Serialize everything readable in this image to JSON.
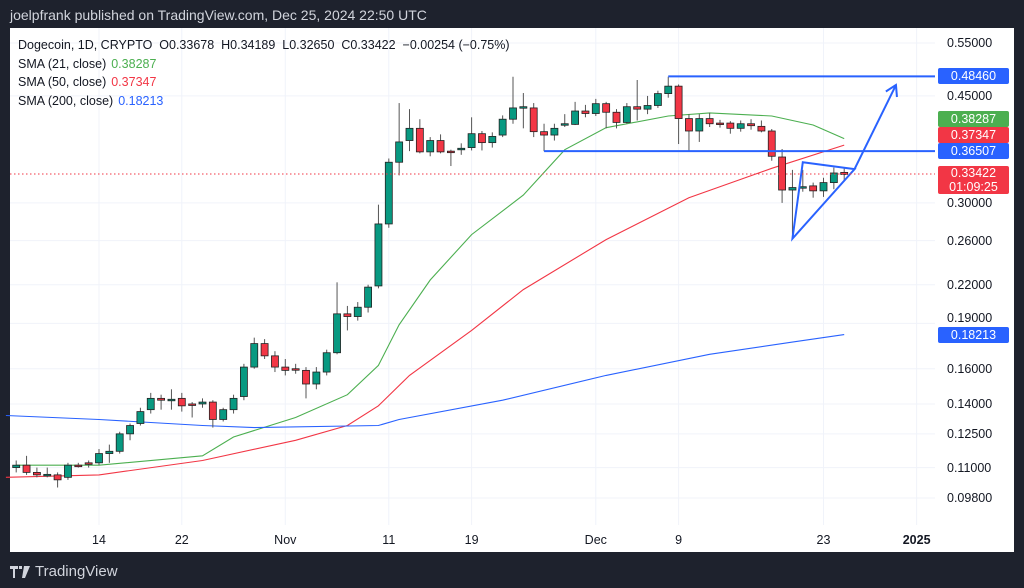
{
  "header": {
    "publisher_text": "joelpfrank published on TradingView.com, Dec 25, 2024 22:50 UTC"
  },
  "legend": {
    "symbol_line": "Dogecoin, 1D, CRYPTO  O0.33678  H0.34189  L0.32650  C0.33422  −0.00254 (−0.75%)",
    "sma21_label": "SMA (21, close)",
    "sma21_value": "0.38287",
    "sma50_label": "SMA (50, close)",
    "sma50_value": "0.37347",
    "sma200_label": "SMA (200, close)",
    "sma200_value": "0.18213"
  },
  "price_tags": {
    "resistance": "0.48460",
    "sma21": "0.38287",
    "sma50": "0.37347",
    "support": "0.36507",
    "last": "0.33422",
    "countdown": "01:09:25",
    "sma200": "0.18213"
  },
  "footer": {
    "brand": "TradingView"
  },
  "colors": {
    "up": "#089981",
    "down": "#f23645",
    "sma21": "#4caf50",
    "sma50": "#f23645",
    "sma200": "#2962ff",
    "drawing": "#2962ff",
    "background": "#1e222d"
  },
  "chart_data": {
    "type": "candlestick",
    "title": "Dogecoin, 1D, CRYPTO",
    "y_scale": "log",
    "ylim": [
      0.095,
      0.58
    ],
    "grid": true,
    "y_ticks": [
      "0.55000",
      "0.45000",
      "0.30000",
      "0.26000",
      "0.22000",
      "0.19000",
      "0.16000",
      "0.14000",
      "0.12500",
      "0.11000",
      "0.09800"
    ],
    "x_ticks": [
      {
        "date": "2024-10-14",
        "label": "14"
      },
      {
        "date": "2024-10-22",
        "label": "22"
      },
      {
        "date": "2024-11-01",
        "label": "Nov"
      },
      {
        "date": "2024-11-11",
        "label": "11"
      },
      {
        "date": "2024-11-19",
        "label": "19"
      },
      {
        "date": "2024-12-01",
        "label": "Dec"
      },
      {
        "date": "2024-12-09",
        "label": "9"
      },
      {
        "date": "2024-12-23",
        "label": "23"
      },
      {
        "date": "2025-01-01",
        "label": "2025"
      }
    ],
    "candles_columns": [
      "date",
      "open",
      "high",
      "low",
      "close"
    ],
    "candles": [
      [
        "2024-10-06",
        0.11,
        0.113,
        0.108,
        0.111
      ],
      [
        "2024-10-07",
        0.111,
        0.115,
        0.107,
        0.108
      ],
      [
        "2024-10-08",
        0.108,
        0.11,
        0.106,
        0.107
      ],
      [
        "2024-10-09",
        0.107,
        0.11,
        0.106,
        0.1072
      ],
      [
        "2024-10-10",
        0.107,
        0.108,
        0.102,
        0.105
      ],
      [
        "2024-10-11",
        0.106,
        0.112,
        0.105,
        0.111
      ],
      [
        "2024-10-12",
        0.111,
        0.112,
        0.11,
        0.1108
      ],
      [
        "2024-10-13",
        0.112,
        0.113,
        0.11,
        0.1118
      ],
      [
        "2024-10-14",
        0.112,
        0.118,
        0.111,
        0.116
      ],
      [
        "2024-10-15",
        0.116,
        0.12,
        0.112,
        0.117
      ],
      [
        "2024-10-16",
        0.117,
        0.126,
        0.116,
        0.125
      ],
      [
        "2024-10-17",
        0.125,
        0.13,
        0.122,
        0.129
      ],
      [
        "2024-10-18",
        0.13,
        0.138,
        0.129,
        0.136
      ],
      [
        "2024-10-19",
        0.137,
        0.146,
        0.135,
        0.143
      ],
      [
        "2024-10-20",
        0.143,
        0.145,
        0.137,
        0.142
      ],
      [
        "2024-10-21",
        0.142,
        0.148,
        0.137,
        0.1425
      ],
      [
        "2024-10-22",
        0.143,
        0.146,
        0.136,
        0.139
      ],
      [
        "2024-10-23",
        0.14,
        0.141,
        0.133,
        0.1398
      ],
      [
        "2024-10-24",
        0.14,
        0.143,
        0.138,
        0.141
      ],
      [
        "2024-10-25",
        0.141,
        0.142,
        0.128,
        0.132
      ],
      [
        "2024-10-26",
        0.132,
        0.138,
        0.131,
        0.137
      ],
      [
        "2024-10-27",
        0.137,
        0.145,
        0.135,
        0.143
      ],
      [
        "2024-10-28",
        0.144,
        0.163,
        0.142,
        0.161
      ],
      [
        "2024-10-29",
        0.161,
        0.18,
        0.16,
        0.176
      ],
      [
        "2024-10-30",
        0.176,
        0.179,
        0.166,
        0.168
      ],
      [
        "2024-10-31",
        0.168,
        0.171,
        0.158,
        0.161
      ],
      [
        "2024-11-01",
        0.161,
        0.166,
        0.156,
        0.159
      ],
      [
        "2024-11-02",
        0.16,
        0.163,
        0.157,
        0.1598
      ],
      [
        "2024-11-03",
        0.159,
        0.161,
        0.143,
        0.151
      ],
      [
        "2024-11-04",
        0.151,
        0.161,
        0.148,
        0.158
      ],
      [
        "2024-11-05",
        0.158,
        0.172,
        0.156,
        0.17
      ],
      [
        "2024-11-06",
        0.17,
        0.222,
        0.169,
        0.197
      ],
      [
        "2024-11-07",
        0.197,
        0.203,
        0.185,
        0.195
      ],
      [
        "2024-11-08",
        0.195,
        0.206,
        0.192,
        0.202
      ],
      [
        "2024-11-09",
        0.202,
        0.22,
        0.198,
        0.218
      ],
      [
        "2024-11-10",
        0.219,
        0.298,
        0.217,
        0.277
      ],
      [
        "2024-11-11",
        0.277,
        0.355,
        0.273,
        0.35
      ],
      [
        "2024-11-12",
        0.35,
        0.438,
        0.333,
        0.378
      ],
      [
        "2024-11-13",
        0.38,
        0.428,
        0.365,
        0.398
      ],
      [
        "2024-11-14",
        0.398,
        0.412,
        0.362,
        0.364
      ],
      [
        "2024-11-15",
        0.364,
        0.385,
        0.358,
        0.38
      ],
      [
        "2024-11-16",
        0.38,
        0.389,
        0.362,
        0.364
      ],
      [
        "2024-11-17",
        0.365,
        0.367,
        0.345,
        0.364
      ],
      [
        "2024-11-18",
        0.367,
        0.376,
        0.36,
        0.369
      ],
      [
        "2024-11-19",
        0.37,
        0.415,
        0.366,
        0.39
      ],
      [
        "2024-11-20",
        0.39,
        0.394,
        0.366,
        0.377
      ],
      [
        "2024-11-21",
        0.377,
        0.392,
        0.37,
        0.386
      ],
      [
        "2024-11-22",
        0.388,
        0.418,
        0.385,
        0.412
      ],
      [
        "2024-11-23",
        0.412,
        0.484,
        0.405,
        0.43
      ],
      [
        "2024-11-24",
        0.431,
        0.455,
        0.398,
        0.432
      ],
      [
        "2024-11-25",
        0.43,
        0.438,
        0.385,
        0.393
      ],
      [
        "2024-11-26",
        0.393,
        0.405,
        0.365,
        0.388
      ],
      [
        "2024-11-27",
        0.388,
        0.405,
        0.38,
        0.398
      ],
      [
        "2024-11-28",
        0.404,
        0.42,
        0.4,
        0.405
      ],
      [
        "2024-11-29",
        0.404,
        0.44,
        0.403,
        0.425
      ],
      [
        "2024-11-30",
        0.425,
        0.435,
        0.415,
        0.421
      ],
      [
        "2024-12-01",
        0.421,
        0.445,
        0.417,
        0.437
      ],
      [
        "2024-12-02",
        0.437,
        0.44,
        0.398,
        0.423
      ],
      [
        "2024-12-03",
        0.423,
        0.428,
        0.398,
        0.407
      ],
      [
        "2024-12-04",
        0.407,
        0.438,
        0.405,
        0.432
      ],
      [
        "2024-12-05",
        0.432,
        0.478,
        0.41,
        0.428
      ],
      [
        "2024-12-06",
        0.428,
        0.45,
        0.42,
        0.434
      ],
      [
        "2024-12-07",
        0.434,
        0.459,
        0.43,
        0.454
      ],
      [
        "2024-12-08",
        0.454,
        0.484,
        0.447,
        0.467
      ],
      [
        "2024-12-09",
        0.467,
        0.47,
        0.375,
        0.413
      ],
      [
        "2024-12-10",
        0.413,
        0.42,
        0.365,
        0.394
      ],
      [
        "2024-12-11",
        0.394,
        0.42,
        0.378,
        0.413
      ],
      [
        "2024-12-12",
        0.413,
        0.422,
        0.4,
        0.405
      ],
      [
        "2024-12-13",
        0.406,
        0.411,
        0.399,
        0.4055
      ],
      [
        "2024-12-14",
        0.406,
        0.409,
        0.39,
        0.398
      ],
      [
        "2024-12-15",
        0.398,
        0.41,
        0.393,
        0.405
      ],
      [
        "2024-12-16",
        0.405,
        0.412,
        0.396,
        0.402
      ],
      [
        "2024-12-17",
        0.401,
        0.41,
        0.392,
        0.394
      ],
      [
        "2024-12-18",
        0.394,
        0.397,
        0.352,
        0.358
      ],
      [
        "2024-12-19",
        0.357,
        0.368,
        0.3,
        0.315
      ],
      [
        "2024-12-20",
        0.315,
        0.34,
        0.262,
        0.318
      ],
      [
        "2024-12-21",
        0.318,
        0.34,
        0.313,
        0.319
      ],
      [
        "2024-12-22",
        0.32,
        0.324,
        0.306,
        0.314
      ],
      [
        "2024-12-23",
        0.314,
        0.33,
        0.307,
        0.324
      ],
      [
        "2024-12-24",
        0.324,
        0.343,
        0.316,
        0.336
      ],
      [
        "2024-12-25",
        0.33678,
        0.34189,
        0.3265,
        0.33422
      ]
    ],
    "series": [
      {
        "name": "SMA (21, close)",
        "color": "#4caf50",
        "points": [
          [
            "2024-10-06",
            0.111
          ],
          [
            "2024-10-14",
            0.111
          ],
          [
            "2024-10-24",
            0.115
          ],
          [
            "2024-10-27",
            0.1235
          ],
          [
            "2024-11-02",
            0.133
          ],
          [
            "2024-11-07",
            0.145
          ],
          [
            "2024-11-10",
            0.162
          ],
          [
            "2024-11-12",
            0.189
          ],
          [
            "2024-11-15",
            0.224
          ],
          [
            "2024-11-19",
            0.266
          ],
          [
            "2024-11-24",
            0.309
          ],
          [
            "2024-11-28",
            0.367
          ],
          [
            "2024-12-02",
            0.399
          ],
          [
            "2024-12-08",
            0.417
          ],
          [
            "2024-12-12",
            0.422
          ],
          [
            "2024-12-18",
            0.417
          ],
          [
            "2024-12-22",
            0.403
          ],
          [
            "2024-12-25",
            0.38287
          ]
        ]
      },
      {
        "name": "SMA (50, close)",
        "color": "#f23645",
        "points": [
          [
            "2024-10-05",
            0.106
          ],
          [
            "2024-10-14",
            0.107
          ],
          [
            "2024-10-24",
            0.113
          ],
          [
            "2024-11-02",
            0.122
          ],
          [
            "2024-11-07",
            0.129
          ],
          [
            "2024-11-10",
            0.139
          ],
          [
            "2024-11-13",
            0.156
          ],
          [
            "2024-11-19",
            0.185
          ],
          [
            "2024-11-24",
            0.216
          ],
          [
            "2024-12-02",
            0.261
          ],
          [
            "2024-12-10",
            0.306
          ],
          [
            "2024-12-18",
            0.342
          ],
          [
            "2024-12-25",
            0.37347
          ]
        ]
      },
      {
        "name": "SMA (200, close)",
        "color": "#2962ff",
        "points": [
          [
            "2024-10-05",
            0.134
          ],
          [
            "2024-10-14",
            0.132
          ],
          [
            "2024-10-24",
            0.129
          ],
          [
            "2024-10-29",
            0.128
          ],
          [
            "2024-11-10",
            0.129
          ],
          [
            "2024-11-12",
            0.132
          ],
          [
            "2024-11-22",
            0.142
          ],
          [
            "2024-12-02",
            0.156
          ],
          [
            "2024-12-12",
            0.169
          ],
          [
            "2024-12-20",
            0.177
          ],
          [
            "2024-12-25",
            0.18213
          ]
        ]
      }
    ],
    "annotations": [
      {
        "type": "horizontal-ray",
        "from": "2024-12-08",
        "price": 0.4846
      },
      {
        "type": "horizontal-ray",
        "from": "2024-11-26",
        "price": 0.36507
      },
      {
        "type": "triangle",
        "points": [
          [
            "2024-12-21",
            0.35
          ],
          [
            "2024-12-26",
            0.341
          ],
          [
            "2024-12-20",
            0.262
          ]
        ]
      },
      {
        "type": "arrow",
        "from": [
          "2024-12-26",
          0.341
        ],
        "to": [
          "2024-12-30",
          0.469
        ]
      }
    ]
  }
}
